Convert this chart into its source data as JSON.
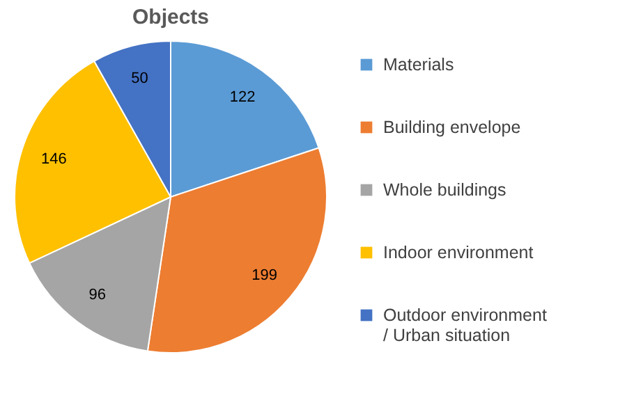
{
  "chart_data": {
    "type": "pie",
    "title": "Objects",
    "categories": [
      "Materials",
      "Building envelope",
      "Whole buildings",
      "Indoor environment",
      "Outdoor environment / Urban situation"
    ],
    "values": [
      122,
      199,
      96,
      146,
      50
    ],
    "colors": [
      "#5b9bd5",
      "#ed7d31",
      "#a5a5a5",
      "#ffc000",
      "#4472c4"
    ],
    "data_labels": true,
    "legend": "right"
  }
}
